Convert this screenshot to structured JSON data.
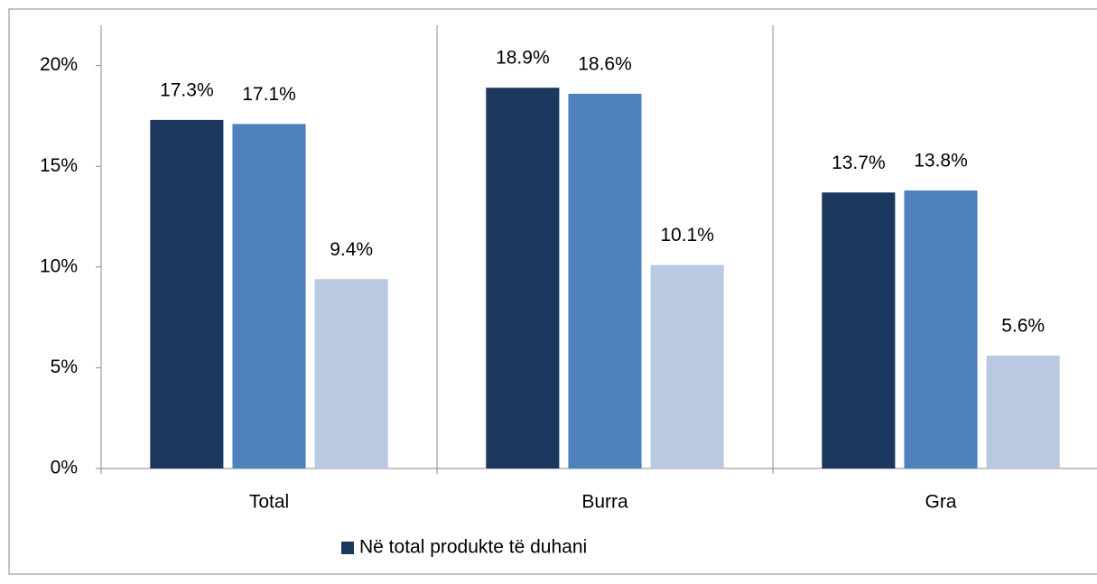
{
  "chart_data": {
    "type": "bar",
    "categories": [
      "Total",
      "Burra",
      "Gra"
    ],
    "series": [
      {
        "name": "Në total produkte të duhani",
        "color": "#1b375e",
        "values": [
          17.3,
          18.9,
          13.7
        ],
        "value_labels": [
          "17.3%",
          "18.9%",
          "13.7%"
        ]
      },
      {
        "color": "#4f81bd",
        "values": [
          17.1,
          18.6,
          13.8
        ],
        "value_labels": [
          "17.1%",
          "18.6%",
          "13.8%"
        ]
      },
      {
        "color": "#bac9e2",
        "values": [
          9.4,
          10.1,
          5.6
        ],
        "value_labels": [
          "9.4%",
          "10.1%",
          "5.6%"
        ]
      }
    ],
    "ylim": [
      0,
      22
    ],
    "yticks": [
      {
        "value": 0,
        "label": "0%"
      },
      {
        "value": 5,
        "label": "5%"
      },
      {
        "value": 10,
        "label": "10%"
      },
      {
        "value": 15,
        "label": "15%"
      },
      {
        "value": 20,
        "label": "20%"
      }
    ],
    "legend": "bottom"
  }
}
